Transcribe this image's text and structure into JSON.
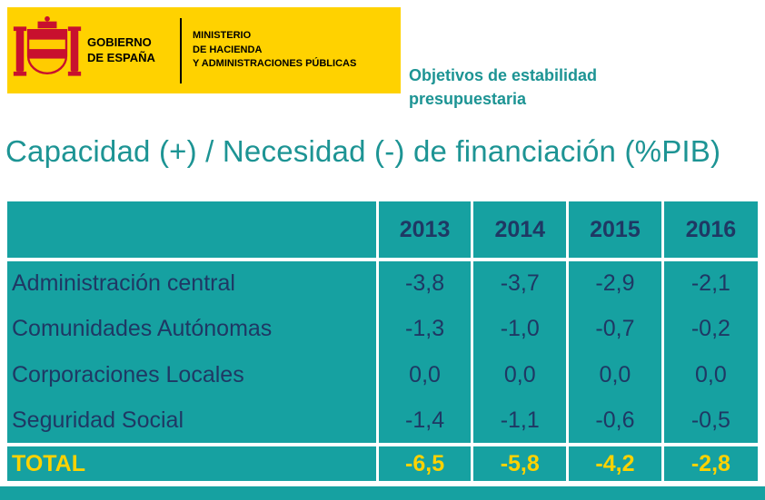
{
  "banner": {
    "gobierno": "GOBIERNO\nDE ESPAÑA",
    "ministerio": "MINISTERIO\nDE HACIENDA\nY ADMINISTRACIONES PÚBLICAS"
  },
  "subtitle": "Objetivos de estabilidad presupuestaria",
  "title": "Capacidad (+) / Necesidad (-) de financiación (%PIB)",
  "chart_data": {
    "type": "table",
    "title": "Capacidad (+) / Necesidad (-) de financiación (%PIB)",
    "columns": [
      "2013",
      "2014",
      "2015",
      "2016"
    ],
    "rows": [
      {
        "label": "Administración central",
        "values": [
          "-3,8",
          "-3,7",
          "-2,9",
          "-2,1"
        ],
        "total": false
      },
      {
        "label": "Comunidades Autónomas",
        "values": [
          "-1,3",
          "-1,0",
          "-0,7",
          "-0,2"
        ],
        "total": false
      },
      {
        "label": "Corporaciones Locales",
        "values": [
          "0,0",
          "0,0",
          "0,0",
          "0,0"
        ],
        "total": false
      },
      {
        "label": "Seguridad Social",
        "values": [
          "-1,4",
          "-1,1",
          "-0,6",
          "-0,5"
        ],
        "total": false
      },
      {
        "label": "TOTAL",
        "values": [
          "-6,5",
          "-5,8",
          "-4,2",
          "-2,8"
        ],
        "total": true
      }
    ]
  },
  "colors": {
    "banner_yellow": "#FFD200",
    "table_teal": "#16A1A1",
    "navy_text": "#1F3864",
    "title_teal": "#1D9494",
    "total_yellow": "#FFD200"
  }
}
